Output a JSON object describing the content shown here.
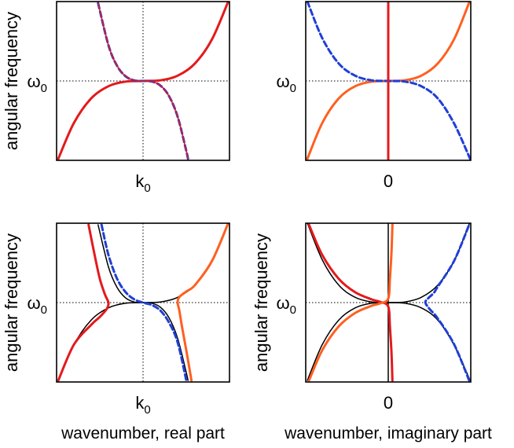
{
  "chart_data": [
    {
      "type": "line",
      "ylabel": "angular frequency",
      "xlabel": "",
      "ytick": {
        "main": "ω",
        "sub": "0"
      },
      "xtick": {
        "main": "k",
        "sub": "0"
      },
      "xlim": [
        -1,
        1
      ],
      "ylim": [
        -1,
        1
      ],
      "series": [
        {
          "color": "#e31a1c",
          "dash": false,
          "width": 3,
          "x": [
            -0.98,
            -0.8,
            -0.6,
            -0.4,
            -0.2,
            0,
            0.2,
            0.4,
            0.6,
            0.8,
            1.0
          ],
          "y": [
            -0.98,
            -0.53,
            -0.22,
            -0.066,
            -0.008,
            0,
            0.008,
            0.066,
            0.22,
            0.53,
            1.04
          ]
        },
        {
          "color": "#1f3fd6",
          "dash": true,
          "width": 3,
          "x": [
            -0.52,
            -0.4,
            -0.3,
            -0.2,
            -0.1,
            0,
            0.1,
            0.2,
            0.3,
            0.4,
            0.5,
            0.52
          ],
          "y": [
            0.98,
            0.45,
            0.19,
            0.057,
            0.007,
            0,
            -0.007,
            -0.057,
            -0.19,
            -0.45,
            -0.88,
            -0.98
          ]
        },
        {
          "color": "#e31a1c",
          "dash": false,
          "width": 1.5,
          "x": [
            -0.52,
            -0.4,
            -0.3,
            -0.2,
            -0.1,
            0,
            0.1,
            0.2,
            0.3,
            0.4,
            0.5,
            0.52
          ],
          "y": [
            0.98,
            0.45,
            0.19,
            0.057,
            0.007,
            0,
            -0.007,
            -0.057,
            -0.19,
            -0.45,
            -0.88,
            -0.98
          ]
        }
      ]
    },
    {
      "type": "line",
      "ylabel": "",
      "xlabel": "",
      "ytick": {
        "main": "ω",
        "sub": "0"
      },
      "xtick": {
        "main": "0",
        "sub": ""
      },
      "xlim": [
        -1,
        1
      ],
      "ylim": [
        -1,
        1
      ],
      "series": [
        {
          "color": "#ff5f1f",
          "dash": false,
          "width": 3,
          "x": [
            -0.98,
            -0.8,
            -0.6,
            -0.4,
            -0.2,
            0,
            0.2,
            0.4,
            0.6,
            0.8,
            1.0
          ],
          "y": [
            -0.98,
            -0.53,
            -0.22,
            -0.066,
            -0.008,
            0,
            0.008,
            0.066,
            0.22,
            0.53,
            1.04
          ]
        },
        {
          "color": "#1f3fd6",
          "dash": true,
          "width": 3,
          "x": [
            -0.98,
            -0.8,
            -0.6,
            -0.4,
            -0.2,
            0,
            0.2,
            0.4,
            0.6,
            0.8,
            1.0
          ],
          "y": [
            1.0,
            0.54,
            0.22,
            0.066,
            0.008,
            0,
            -0.008,
            -0.066,
            -0.22,
            -0.54,
            -1.0
          ]
        },
        {
          "color": "#e31a1c",
          "dash": false,
          "width": 3,
          "x": [
            0,
            0
          ],
          "y": [
            -1,
            1
          ]
        }
      ]
    },
    {
      "type": "line",
      "ylabel": "angular frequency",
      "xlabel": "wavenumber, real part",
      "ytick": {
        "main": "ω",
        "sub": "0"
      },
      "xtick": {
        "main": "k",
        "sub": "0"
      },
      "xlim": [
        -1,
        1
      ],
      "ylim": [
        -1,
        1
      ],
      "series": [
        {
          "color": "#000000",
          "dash": false,
          "width": 1.5,
          "x": [
            -0.98,
            -0.8,
            -0.6,
            -0.4,
            -0.2,
            0,
            0.2,
            0.4,
            0.6,
            0.8,
            1.0
          ],
          "y": [
            -0.98,
            -0.53,
            -0.22,
            -0.066,
            -0.008,
            0,
            0.008,
            0.066,
            0.22,
            0.53,
            1.04
          ]
        },
        {
          "color": "#000000",
          "dash": false,
          "width": 1.5,
          "x": [
            -0.52,
            -0.4,
            -0.3,
            -0.2,
            -0.1,
            0,
            0.1,
            0.2,
            0.3,
            0.4,
            0.5,
            0.52
          ],
          "y": [
            0.98,
            0.45,
            0.19,
            0.057,
            0.007,
            0,
            -0.007,
            -0.057,
            -0.19,
            -0.45,
            -0.88,
            -0.98
          ]
        },
        {
          "color": "#e31a1c",
          "dash": false,
          "width": 3,
          "x": [
            -0.98,
            -0.8,
            -0.6,
            -0.5,
            -0.42,
            -0.4,
            -0.44,
            -0.5,
            -0.56,
            -0.63
          ],
          "y": [
            -0.98,
            -0.53,
            -0.28,
            -0.18,
            -0.08,
            0,
            0.1,
            0.3,
            0.6,
            0.98
          ]
        },
        {
          "color": "#ff5f1f",
          "dash": false,
          "width": 3,
          "x": [
            0.56,
            0.5,
            0.45,
            0.42,
            0.4,
            0.42,
            0.5,
            0.6,
            0.8,
            1.0
          ],
          "y": [
            -0.98,
            -0.6,
            -0.3,
            -0.1,
            0,
            0.07,
            0.14,
            0.22,
            0.53,
            1.04
          ]
        },
        {
          "color": "#1f3fd6",
          "dash": true,
          "width": 3,
          "x": [
            -0.48,
            -0.4,
            -0.3,
            -0.2,
            -0.1,
            0,
            0.1,
            0.2,
            0.3,
            0.4,
            0.5
          ],
          "y": [
            0.98,
            0.6,
            0.3,
            0.13,
            0.04,
            0,
            -0.03,
            -0.1,
            -0.25,
            -0.5,
            -0.98
          ]
        }
      ]
    },
    {
      "type": "line",
      "ylabel": "angular frequency",
      "xlabel": "wavenumber, imaginary part",
      "ytick": {
        "main": "ω",
        "sub": "0"
      },
      "xtick": {
        "main": "0",
        "sub": ""
      },
      "xlim": [
        -1,
        1
      ],
      "ylim": [
        -1,
        1
      ],
      "series": [
        {
          "color": "#000000",
          "dash": false,
          "width": 1.5,
          "x": [
            -0.98,
            -0.8,
            -0.6,
            -0.4,
            -0.2,
            0,
            0.2,
            0.4,
            0.6,
            0.8,
            1.0
          ],
          "y": [
            -0.98,
            -0.53,
            -0.22,
            -0.066,
            -0.008,
            0,
            0.008,
            0.066,
            0.22,
            0.53,
            1.04
          ]
        },
        {
          "color": "#000000",
          "dash": false,
          "width": 1.5,
          "x": [
            -0.98,
            -0.8,
            -0.6,
            -0.4,
            -0.2,
            0,
            0.2,
            0.4,
            0.6,
            0.8,
            1.0
          ],
          "y": [
            1.0,
            0.54,
            0.22,
            0.066,
            0.008,
            0,
            -0.008,
            -0.066,
            -0.22,
            -0.54,
            -1.0
          ]
        },
        {
          "color": "#000000",
          "dash": false,
          "width": 1.5,
          "x": [
            0,
            0
          ],
          "y": [
            -1,
            1
          ]
        },
        {
          "color": "#e31a1c",
          "dash": false,
          "width": 3,
          "x": [
            -0.96,
            -0.8,
            -0.6,
            -0.4,
            -0.2,
            -0.1,
            0,
            0.02,
            0.04,
            0.05
          ],
          "y": [
            0.98,
            0.6,
            0.3,
            0.13,
            0.04,
            0.01,
            -0.05,
            -0.3,
            -0.65,
            -0.98
          ]
        },
        {
          "color": "#ff5f1f",
          "dash": false,
          "width": 3,
          "x": [
            -0.96,
            -0.8,
            -0.6,
            -0.4,
            -0.2,
            -0.1,
            0,
            0.02,
            0.04,
            0.05
          ],
          "y": [
            -0.98,
            -0.6,
            -0.3,
            -0.13,
            -0.04,
            -0.01,
            0.05,
            0.3,
            0.65,
            0.98
          ]
        },
        {
          "color": "#1f3fd6",
          "dash": true,
          "width": 3,
          "x": [
            0.98,
            0.8,
            0.6,
            0.5,
            0.45,
            0.48,
            0.55,
            0.6,
            0.8,
            0.98
          ],
          "y": [
            -0.98,
            -0.53,
            -0.2,
            -0.08,
            0,
            0.05,
            0.12,
            0.2,
            0.53,
            0.98
          ]
        }
      ]
    }
  ]
}
